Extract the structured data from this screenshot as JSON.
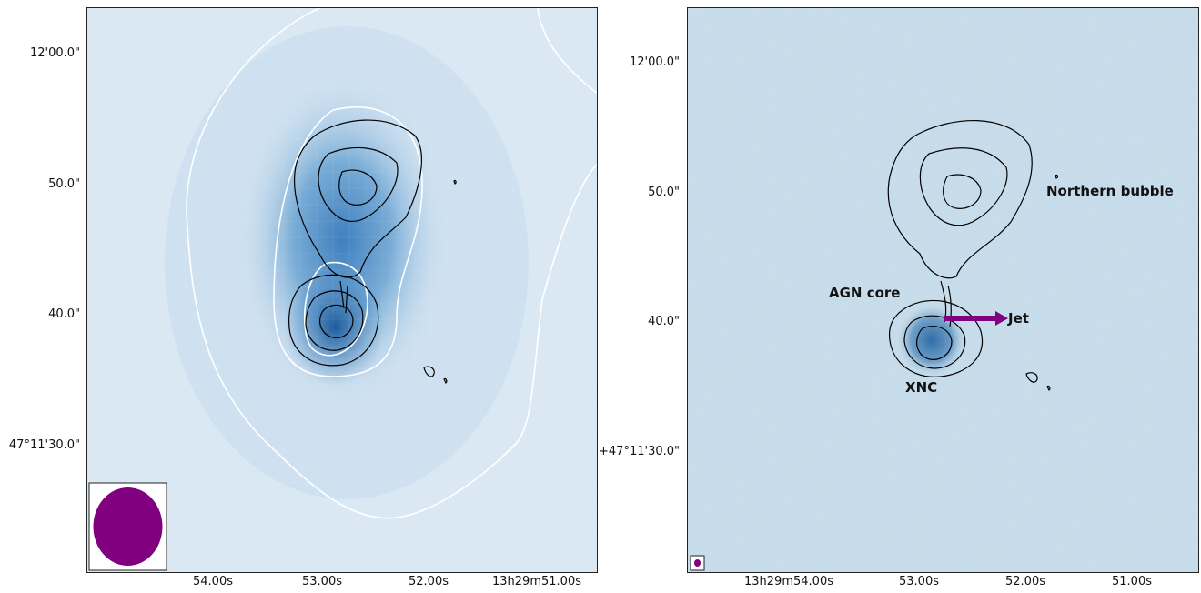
{
  "left_panel": {
    "y_ticks": [
      "12'00.0\"",
      "50.0\"",
      "40.0\"",
      "47°11'30.0\""
    ],
    "x_ticks": [
      "54.00s",
      "53.00s",
      "52.00s",
      "13h29m51.00s"
    ],
    "beam_color": "#800080",
    "map_colormap": "Blues",
    "overlay_contour_color": "#ffffff",
    "radio_contour_color": "#000000"
  },
  "right_panel": {
    "y_ticks": [
      "12'00.0\"",
      "50.0\"",
      "40.0\"",
      "+47°11'30.0\""
    ],
    "x_ticks": [
      "13h29m54.00s",
      "53.00s",
      "52.00s",
      "51.00s"
    ],
    "annotations": {
      "northern_bubble": "Northern bubble",
      "agn_core": "AGN core",
      "jet": "Jet",
      "xnc": "XNC"
    },
    "jet_arrow_color": "#800080",
    "beam_color": "#800080",
    "map_colormap": "Blues",
    "radio_contour_color": "#000000"
  }
}
